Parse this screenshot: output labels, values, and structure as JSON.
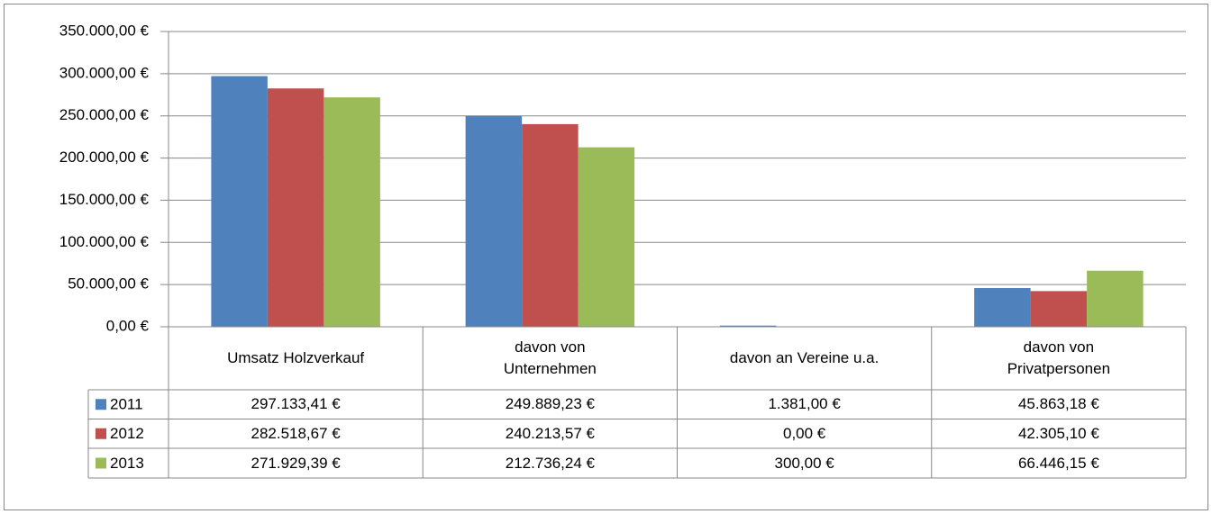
{
  "chart_data": {
    "type": "bar",
    "categories": [
      "Umsatz Holzverkauf",
      "davon von\nUnternehmen",
      "davon an Vereine u.a.",
      "davon von\nPrivatpersonen"
    ],
    "series": [
      {
        "name": "2011",
        "color": "#4f81bd",
        "values": [
          297133.41,
          249889.23,
          1381.0,
          45863.18
        ],
        "value_labels": [
          "297.133,41 €",
          "249.889,23 €",
          "1.381,00 €",
          "45.863,18 €"
        ]
      },
      {
        "name": "2012",
        "color": "#c0504d",
        "values": [
          282518.67,
          240213.57,
          0.0,
          42305.1
        ],
        "value_labels": [
          "282.518,67 €",
          "240.213,57 €",
          "0,00 €",
          "42.305,10 €"
        ]
      },
      {
        "name": "2013",
        "color": "#9bbb59",
        "values": [
          271929.39,
          212736.24,
          300.0,
          66446.15
        ],
        "value_labels": [
          "271.929,39 €",
          "212.736,24 €",
          "300,00 €",
          "66.446,15 €"
        ]
      }
    ],
    "ylim": [
      0,
      350000
    ],
    "yticks": [
      {
        "value": 0,
        "label": "0,00 €"
      },
      {
        "value": 50000,
        "label": "50.000,00 €"
      },
      {
        "value": 100000,
        "label": "100.000,00 €"
      },
      {
        "value": 150000,
        "label": "150.000,00 €"
      },
      {
        "value": 200000,
        "label": "200.000,00 €"
      },
      {
        "value": 250000,
        "label": "250.000,00 €"
      },
      {
        "value": 300000,
        "label": "300.000,00 €"
      },
      {
        "value": 350000,
        "label": "350.000,00 €"
      }
    ],
    "grid": true
  }
}
